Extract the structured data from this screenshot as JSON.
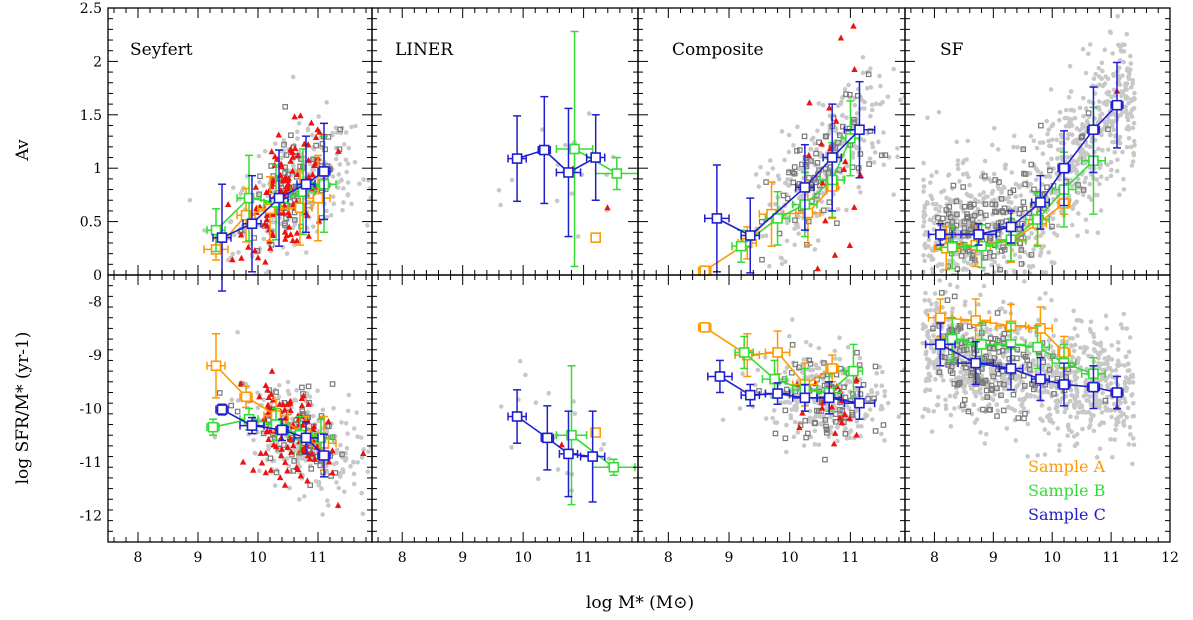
{
  "figure": {
    "xlabel": "log M* (M⊙)",
    "ylabel_top": "Av",
    "ylabel_bottom": "log SFR/M* (yr-1)",
    "legend": [
      {
        "label": "Sample A",
        "color": "#ff9900"
      },
      {
        "label": "Sample B",
        "color": "#33dd33"
      },
      {
        "label": "Sample C",
        "color": "#1f1fd0"
      }
    ],
    "colors": {
      "gray_points": "#c8c8c8",
      "gray_squares": "#7a7a7a",
      "red_triangles": "#ee1111"
    }
  },
  "chart_data": [
    {
      "type": "scatter",
      "panel": "Seyfert",
      "row": "top",
      "xlim": [
        7.5,
        11.9
      ],
      "ylim": [
        0,
        2.5
      ],
      "x_ticks": [
        "8",
        "9",
        "10",
        "11"
      ],
      "y_ticks": [
        "0",
        "0.5",
        "1",
        "1.5",
        "2",
        "2.5"
      ],
      "series": [
        {
          "name": "Sample A",
          "points": [
            {
              "x": 9.3,
              "y": 0.24,
              "xerr": 0.2,
              "yerr": 0.1
            },
            {
              "x": 9.8,
              "y": 0.56,
              "xerr": 0.15,
              "yerr": 0.25
            },
            {
              "x": 10.2,
              "y": 0.62,
              "xerr": 0.2,
              "yerr": 0.3
            },
            {
              "x": 10.7,
              "y": 0.63,
              "xerr": 0.2,
              "yerr": 0.35
            },
            {
              "x": 11.0,
              "y": 0.72,
              "xerr": 0.2,
              "yerr": 0.4
            }
          ]
        },
        {
          "name": "Sample B",
          "points": [
            {
              "x": 9.3,
              "y": 0.42,
              "xerr": 0.15,
              "yerr": 0.2
            },
            {
              "x": 9.85,
              "y": 0.72,
              "xerr": 0.2,
              "yerr": 0.4
            },
            {
              "x": 10.3,
              "y": 0.68,
              "xerr": 0.2,
              "yerr": 0.35
            },
            {
              "x": 10.75,
              "y": 0.78,
              "xerr": 0.2,
              "yerr": 0.4
            },
            {
              "x": 11.1,
              "y": 0.85,
              "xerr": 0.2,
              "yerr": 0.45
            }
          ]
        },
        {
          "name": "Sample C",
          "points": [
            {
              "x": 9.4,
              "y": 0.35,
              "xerr": 0.15,
              "yerr": 0.5
            },
            {
              "x": 9.9,
              "y": 0.48,
              "xerr": 0.15,
              "yerr": 0.45
            },
            {
              "x": 10.35,
              "y": 0.72,
              "xerr": 0.15,
              "yerr": 0.45
            },
            {
              "x": 10.8,
              "y": 0.85,
              "xerr": 0.15,
              "yerr": 0.45
            },
            {
              "x": 11.1,
              "y": 0.97,
              "xerr": 0.1,
              "yerr": 0.45
            }
          ]
        }
      ]
    },
    {
      "type": "scatter",
      "panel": "LINER",
      "row": "top",
      "xlim": [
        7.5,
        11.9
      ],
      "ylim": [
        0,
        2.5
      ],
      "x_ticks": [
        "8",
        "9",
        "10",
        "11"
      ],
      "y_ticks": [],
      "series": [
        {
          "name": "Sample A",
          "points": [
            {
              "x": 11.2,
              "y": 0.35,
              "xerr": 0.05,
              "yerr": 0.03
            }
          ]
        },
        {
          "name": "Sample B",
          "points": [
            {
              "x": 10.85,
              "y": 1.18,
              "xerr": 0.3,
              "yerr": 1.1
            },
            {
              "x": 11.55,
              "y": 0.95,
              "xerr": 0.35,
              "yerr": 0.15
            }
          ]
        },
        {
          "name": "Sample C",
          "points": [
            {
              "x": 9.9,
              "y": 1.09,
              "xerr": 0.15,
              "yerr": 0.4
            },
            {
              "x": 10.35,
              "y": 1.17,
              "xerr": 0.1,
              "yerr": 0.5
            },
            {
              "x": 10.75,
              "y": 0.96,
              "xerr": 0.2,
              "yerr": 0.6
            },
            {
              "x": 11.2,
              "y": 1.1,
              "xerr": 0.15,
              "yerr": 0.4
            }
          ]
        }
      ]
    },
    {
      "type": "scatter",
      "panel": "Composite",
      "row": "top",
      "xlim": [
        7.5,
        11.9
      ],
      "ylim": [
        0,
        2.5
      ],
      "x_ticks": [
        "8",
        "9",
        "10",
        "11"
      ],
      "y_ticks": [],
      "series": [
        {
          "name": "Sample A",
          "points": [
            {
              "x": 8.6,
              "y": 0.04,
              "xerr": 0.1,
              "yerr": 0.02
            },
            {
              "x": 9.3,
              "y": 0.3,
              "xerr": 0.15,
              "yerr": 0.15
            },
            {
              "x": 9.7,
              "y": 0.57,
              "xerr": 0.2,
              "yerr": 0.3
            },
            {
              "x": 10.3,
              "y": 0.58,
              "xerr": 0.2,
              "yerr": 0.3
            },
            {
              "x": 10.7,
              "y": 0.83,
              "xerr": 0.1,
              "yerr": 0.3
            }
          ]
        },
        {
          "name": "Sample B",
          "points": [
            {
              "x": 9.2,
              "y": 0.27,
              "xerr": 0.15,
              "yerr": 0.15
            },
            {
              "x": 9.8,
              "y": 0.53,
              "xerr": 0.2,
              "yerr": 0.25
            },
            {
              "x": 10.25,
              "y": 0.66,
              "xerr": 0.2,
              "yerr": 0.3
            },
            {
              "x": 10.7,
              "y": 0.89,
              "xerr": 0.2,
              "yerr": 0.35
            },
            {
              "x": 11.0,
              "y": 1.28,
              "xerr": 0.15,
              "yerr": 0.35
            }
          ]
        },
        {
          "name": "Sample C",
          "points": [
            {
              "x": 8.8,
              "y": 0.53,
              "xerr": 0.2,
              "yerr": 0.5
            },
            {
              "x": 9.35,
              "y": 0.37,
              "xerr": 0.15,
              "yerr": 0.35
            },
            {
              "x": 10.25,
              "y": 0.82,
              "xerr": 0.15,
              "yerr": 0.4
            },
            {
              "x": 10.7,
              "y": 1.1,
              "xerr": 0.15,
              "yerr": 0.5
            },
            {
              "x": 11.15,
              "y": 1.36,
              "xerr": 0.25,
              "yerr": 0.45
            }
          ]
        }
      ]
    },
    {
      "type": "scatter",
      "panel": "SF",
      "row": "top",
      "xlim": [
        7.5,
        12
      ],
      "ylim": [
        0,
        2.5
      ],
      "x_ticks": [
        "8",
        "9",
        "10",
        "11",
        "12"
      ],
      "y_ticks": [],
      "series": [
        {
          "name": "Sample A",
          "points": [
            {
              "x": 8.2,
              "y": 0.25,
              "xerr": 0.2,
              "yerr": 0.2
            },
            {
              "x": 8.7,
              "y": 0.28,
              "xerr": 0.25,
              "yerr": 0.2
            },
            {
              "x": 9.3,
              "y": 0.32,
              "xerr": 0.25,
              "yerr": 0.2
            },
            {
              "x": 9.75,
              "y": 0.48,
              "xerr": 0.15,
              "yerr": 0.2
            },
            {
              "x": 10.2,
              "y": 0.67,
              "xerr": 0.1,
              "yerr": 0.1
            }
          ]
        },
        {
          "name": "Sample B",
          "points": [
            {
              "x": 8.3,
              "y": 0.26,
              "xerr": 0.2,
              "yerr": 0.2
            },
            {
              "x": 8.8,
              "y": 0.27,
              "xerr": 0.25,
              "yerr": 0.2
            },
            {
              "x": 9.3,
              "y": 0.33,
              "xerr": 0.25,
              "yerr": 0.2
            },
            {
              "x": 9.75,
              "y": 0.52,
              "xerr": 0.2,
              "yerr": 0.25
            },
            {
              "x": 10.2,
              "y": 0.8,
              "xerr": 0.2,
              "yerr": 0.35
            },
            {
              "x": 10.7,
              "y": 1.07,
              "xerr": 0.2,
              "yerr": 0.5
            }
          ]
        },
        {
          "name": "Sample C",
          "points": [
            {
              "x": 8.1,
              "y": 0.38,
              "xerr": 0.2,
              "yerr": 0.1
            },
            {
              "x": 8.75,
              "y": 0.38,
              "xerr": 0.3,
              "yerr": 0.1
            },
            {
              "x": 9.3,
              "y": 0.45,
              "xerr": 0.2,
              "yerr": 0.15
            },
            {
              "x": 9.8,
              "y": 0.68,
              "xerr": 0.15,
              "yerr": 0.25
            },
            {
              "x": 10.2,
              "y": 1.0,
              "xerr": 0.1,
              "yerr": 0.35
            },
            {
              "x": 10.7,
              "y": 1.36,
              "xerr": 0.1,
              "yerr": 0.4
            },
            {
              "x": 11.1,
              "y": 1.59,
              "xerr": 0.1,
              "yerr": 0.4
            }
          ]
        }
      ]
    },
    {
      "type": "scatter",
      "panel": "Seyfert",
      "row": "bottom",
      "xlim": [
        7.5,
        11.9
      ],
      "ylim": [
        -12.5,
        -7.5
      ],
      "x_ticks": [
        "8",
        "9",
        "10",
        "11"
      ],
      "y_ticks": [
        "-12",
        "-11",
        "-10",
        "-9",
        "-8"
      ],
      "series": [
        {
          "name": "Sample A",
          "points": [
            {
              "x": 9.3,
              "y": -9.2,
              "xerr": 0.15,
              "yerr": 0.6
            },
            {
              "x": 9.8,
              "y": -9.78,
              "xerr": 0.1,
              "yerr": 0.2
            },
            {
              "x": 10.3,
              "y": -10.13,
              "xerr": 0.2,
              "yerr": 0.3
            },
            {
              "x": 10.8,
              "y": -10.5,
              "xerr": 0.2,
              "yerr": 0.35
            },
            {
              "x": 11.1,
              "y": -10.65,
              "xerr": 0.2,
              "yerr": 0.5
            }
          ]
        },
        {
          "name": "Sample B",
          "points": [
            {
              "x": 9.25,
              "y": -10.35,
              "xerr": 0.1,
              "yerr": 0.15
            },
            {
              "x": 9.85,
              "y": -10.2,
              "xerr": 0.15,
              "yerr": 0.2
            },
            {
              "x": 10.3,
              "y": -10.3,
              "xerr": 0.2,
              "yerr": 0.3
            },
            {
              "x": 10.7,
              "y": -10.5,
              "xerr": 0.2,
              "yerr": 0.35
            },
            {
              "x": 11.05,
              "y": -10.55,
              "xerr": 0.2,
              "yerr": 0.35
            }
          ]
        },
        {
          "name": "Sample C",
          "points": [
            {
              "x": 9.4,
              "y": -10.02,
              "xerr": 0.1,
              "yerr": 0.1
            },
            {
              "x": 9.9,
              "y": -10.32,
              "xerr": 0.2,
              "yerr": 0.15
            },
            {
              "x": 10.4,
              "y": -10.4,
              "xerr": 0.1,
              "yerr": 0.2
            },
            {
              "x": 10.8,
              "y": -10.55,
              "xerr": 0.2,
              "yerr": 0.3
            },
            {
              "x": 11.1,
              "y": -10.88,
              "xerr": 0.1,
              "yerr": 0.4
            }
          ]
        }
      ]
    },
    {
      "type": "scatter",
      "panel": "LINER",
      "row": "bottom",
      "xlim": [
        7.5,
        11.9
      ],
      "ylim": [
        -12.5,
        -7.5
      ],
      "x_ticks": [
        "8",
        "9",
        "10",
        "11"
      ],
      "y_ticks": [],
      "series": [
        {
          "name": "Sample A",
          "points": [
            {
              "x": 11.2,
              "y": -10.45,
              "xerr": 0.05,
              "yerr": 0.05
            }
          ]
        },
        {
          "name": "Sample B",
          "points": [
            {
              "x": 10.8,
              "y": -10.5,
              "xerr": 0.25,
              "yerr": 1.3
            },
            {
              "x": 11.5,
              "y": -11.1,
              "xerr": 0.35,
              "yerr": 0.15
            }
          ]
        },
        {
          "name": "Sample C",
          "points": [
            {
              "x": 9.9,
              "y": -10.15,
              "xerr": 0.15,
              "yerr": 0.5
            },
            {
              "x": 10.4,
              "y": -10.55,
              "xerr": 0.1,
              "yerr": 0.6
            },
            {
              "x": 10.75,
              "y": -10.85,
              "xerr": 0.15,
              "yerr": 0.8
            },
            {
              "x": 11.15,
              "y": -10.9,
              "xerr": 0.2,
              "yerr": 0.85
            }
          ]
        }
      ]
    },
    {
      "type": "scatter",
      "panel": "Composite",
      "row": "bottom",
      "xlim": [
        7.5,
        11.9
      ],
      "ylim": [
        -12.5,
        -7.5
      ],
      "x_ticks": [
        "8",
        "9",
        "10",
        "11"
      ],
      "y_ticks": [],
      "series": [
        {
          "name": "Sample A",
          "points": [
            {
              "x": 8.6,
              "y": -8.48,
              "xerr": 0.1,
              "yerr": 0.05
            },
            {
              "x": 9.3,
              "y": -9.0,
              "xerr": 0.2,
              "yerr": 0.4
            },
            {
              "x": 9.8,
              "y": -8.95,
              "xerr": 0.2,
              "yerr": 0.4
            },
            {
              "x": 10.25,
              "y": -9.55,
              "xerr": 0.2,
              "yerr": 0.4
            },
            {
              "x": 10.7,
              "y": -9.25,
              "xerr": 0.1,
              "yerr": 0.25
            }
          ]
        },
        {
          "name": "Sample B",
          "points": [
            {
              "x": 9.25,
              "y": -8.95,
              "xerr": 0.15,
              "yerr": 0.3
            },
            {
              "x": 9.75,
              "y": -9.45,
              "xerr": 0.2,
              "yerr": 0.35
            },
            {
              "x": 10.25,
              "y": -9.65,
              "xerr": 0.2,
              "yerr": 0.4
            },
            {
              "x": 10.65,
              "y": -9.7,
              "xerr": 0.2,
              "yerr": 0.35
            },
            {
              "x": 11.05,
              "y": -9.3,
              "xerr": 0.15,
              "yerr": 0.5
            }
          ]
        },
        {
          "name": "Sample C",
          "points": [
            {
              "x": 8.85,
              "y": -9.4,
              "xerr": 0.2,
              "yerr": 0.3
            },
            {
              "x": 9.35,
              "y": -9.75,
              "xerr": 0.15,
              "yerr": 0.2
            },
            {
              "x": 9.8,
              "y": -9.72,
              "xerr": 0.2,
              "yerr": 0.2
            },
            {
              "x": 10.25,
              "y": -9.8,
              "xerr": 0.2,
              "yerr": 0.25
            },
            {
              "x": 10.65,
              "y": -9.8,
              "xerr": 0.2,
              "yerr": 0.3
            },
            {
              "x": 11.15,
              "y": -9.9,
              "xerr": 0.25,
              "yerr": 0.3
            }
          ]
        }
      ]
    },
    {
      "type": "scatter",
      "panel": "SF",
      "row": "bottom",
      "xlim": [
        7.5,
        12
      ],
      "ylim": [
        -12.5,
        -7.5
      ],
      "x_ticks": [
        "8",
        "9",
        "10",
        "11",
        "12"
      ],
      "y_ticks": [],
      "series": [
        {
          "name": "Sample A",
          "points": [
            {
              "x": 8.1,
              "y": -8.3,
              "xerr": 0.2,
              "yerr": 0.35
            },
            {
              "x": 8.7,
              "y": -8.35,
              "xerr": 0.25,
              "yerr": 0.4
            },
            {
              "x": 9.3,
              "y": -8.45,
              "xerr": 0.25,
              "yerr": 0.4
            },
            {
              "x": 9.8,
              "y": -8.5,
              "xerr": 0.2,
              "yerr": 0.4
            },
            {
              "x": 10.2,
              "y": -8.95,
              "xerr": 0.1,
              "yerr": 0.3
            }
          ]
        },
        {
          "name": "Sample B",
          "points": [
            {
              "x": 8.3,
              "y": -8.7,
              "xerr": 0.2,
              "yerr": 0.4
            },
            {
              "x": 8.8,
              "y": -8.8,
              "xerr": 0.25,
              "yerr": 0.4
            },
            {
              "x": 9.3,
              "y": -8.8,
              "xerr": 0.25,
              "yerr": 0.4
            },
            {
              "x": 9.75,
              "y": -8.85,
              "xerr": 0.2,
              "yerr": 0.4
            },
            {
              "x": 10.2,
              "y": -9.15,
              "xerr": 0.2,
              "yerr": 0.35
            },
            {
              "x": 10.7,
              "y": -9.35,
              "xerr": 0.2,
              "yerr": 0.3
            }
          ]
        },
        {
          "name": "Sample C",
          "points": [
            {
              "x": 8.1,
              "y": -8.8,
              "xerr": 0.25,
              "yerr": 0.4
            },
            {
              "x": 8.7,
              "y": -9.15,
              "xerr": 0.3,
              "yerr": 0.4
            },
            {
              "x": 9.3,
              "y": -9.25,
              "xerr": 0.2,
              "yerr": 0.4
            },
            {
              "x": 9.8,
              "y": -9.45,
              "xerr": 0.15,
              "yerr": 0.4
            },
            {
              "x": 10.2,
              "y": -9.55,
              "xerr": 0.1,
              "yerr": 0.4
            },
            {
              "x": 10.7,
              "y": -9.6,
              "xerr": 0.1,
              "yerr": 0.4
            },
            {
              "x": 11.1,
              "y": -9.7,
              "xerr": 0.1,
              "yerr": 0.3
            }
          ]
        }
      ]
    }
  ]
}
